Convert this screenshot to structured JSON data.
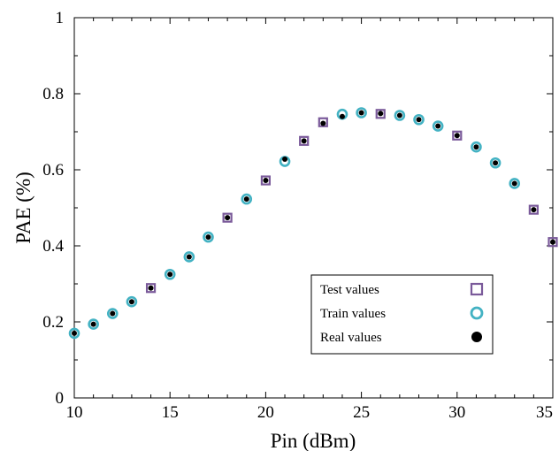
{
  "chart_data": {
    "type": "scatter",
    "xlabel": "Pin (dBm)",
    "ylabel": "PAE (%)",
    "xlim": [
      10,
      35
    ],
    "ylim": [
      0,
      1
    ],
    "xticks": [
      10,
      15,
      20,
      25,
      30,
      35
    ],
    "yticks": [
      0,
      0.2,
      0.4,
      0.6,
      0.8,
      1
    ],
    "ytick_labels": [
      "0",
      "0.2",
      "0.4",
      "0.6",
      "0.8",
      "1"
    ],
    "grid": false,
    "legend_position": "bottom-right",
    "series": [
      {
        "name": "Test values",
        "marker": "square",
        "color": "#7a5a9a",
        "x": [
          14,
          18,
          20,
          22,
          23,
          26,
          30,
          34,
          35
        ],
        "y": [
          0.289,
          0.474,
          0.572,
          0.676,
          0.725,
          0.747,
          0.69,
          0.495,
          0.41
        ]
      },
      {
        "name": "Train values",
        "marker": "circle",
        "color": "#43b2c3",
        "x": [
          10,
          11,
          12,
          13,
          15,
          16,
          17,
          19,
          21,
          24,
          25,
          27,
          28,
          29,
          31,
          32,
          33
        ],
        "y": [
          0.17,
          0.194,
          0.222,
          0.253,
          0.325,
          0.371,
          0.423,
          0.523,
          0.622,
          0.746,
          0.75,
          0.743,
          0.732,
          0.715,
          0.66,
          0.618,
          0.564
        ]
      },
      {
        "name": "Real values",
        "marker": "dot",
        "color": "#000000",
        "x": [
          10,
          11,
          12,
          13,
          14,
          15,
          16,
          17,
          18,
          19,
          20,
          21,
          22,
          23,
          24,
          25,
          26,
          27,
          28,
          29,
          30,
          31,
          32,
          33,
          34,
          35
        ],
        "y": [
          0.17,
          0.194,
          0.222,
          0.253,
          0.289,
          0.325,
          0.371,
          0.423,
          0.474,
          0.523,
          0.572,
          0.628,
          0.676,
          0.722,
          0.74,
          0.75,
          0.748,
          0.743,
          0.732,
          0.715,
          0.69,
          0.66,
          0.618,
          0.564,
          0.495,
          0.41
        ]
      }
    ]
  }
}
